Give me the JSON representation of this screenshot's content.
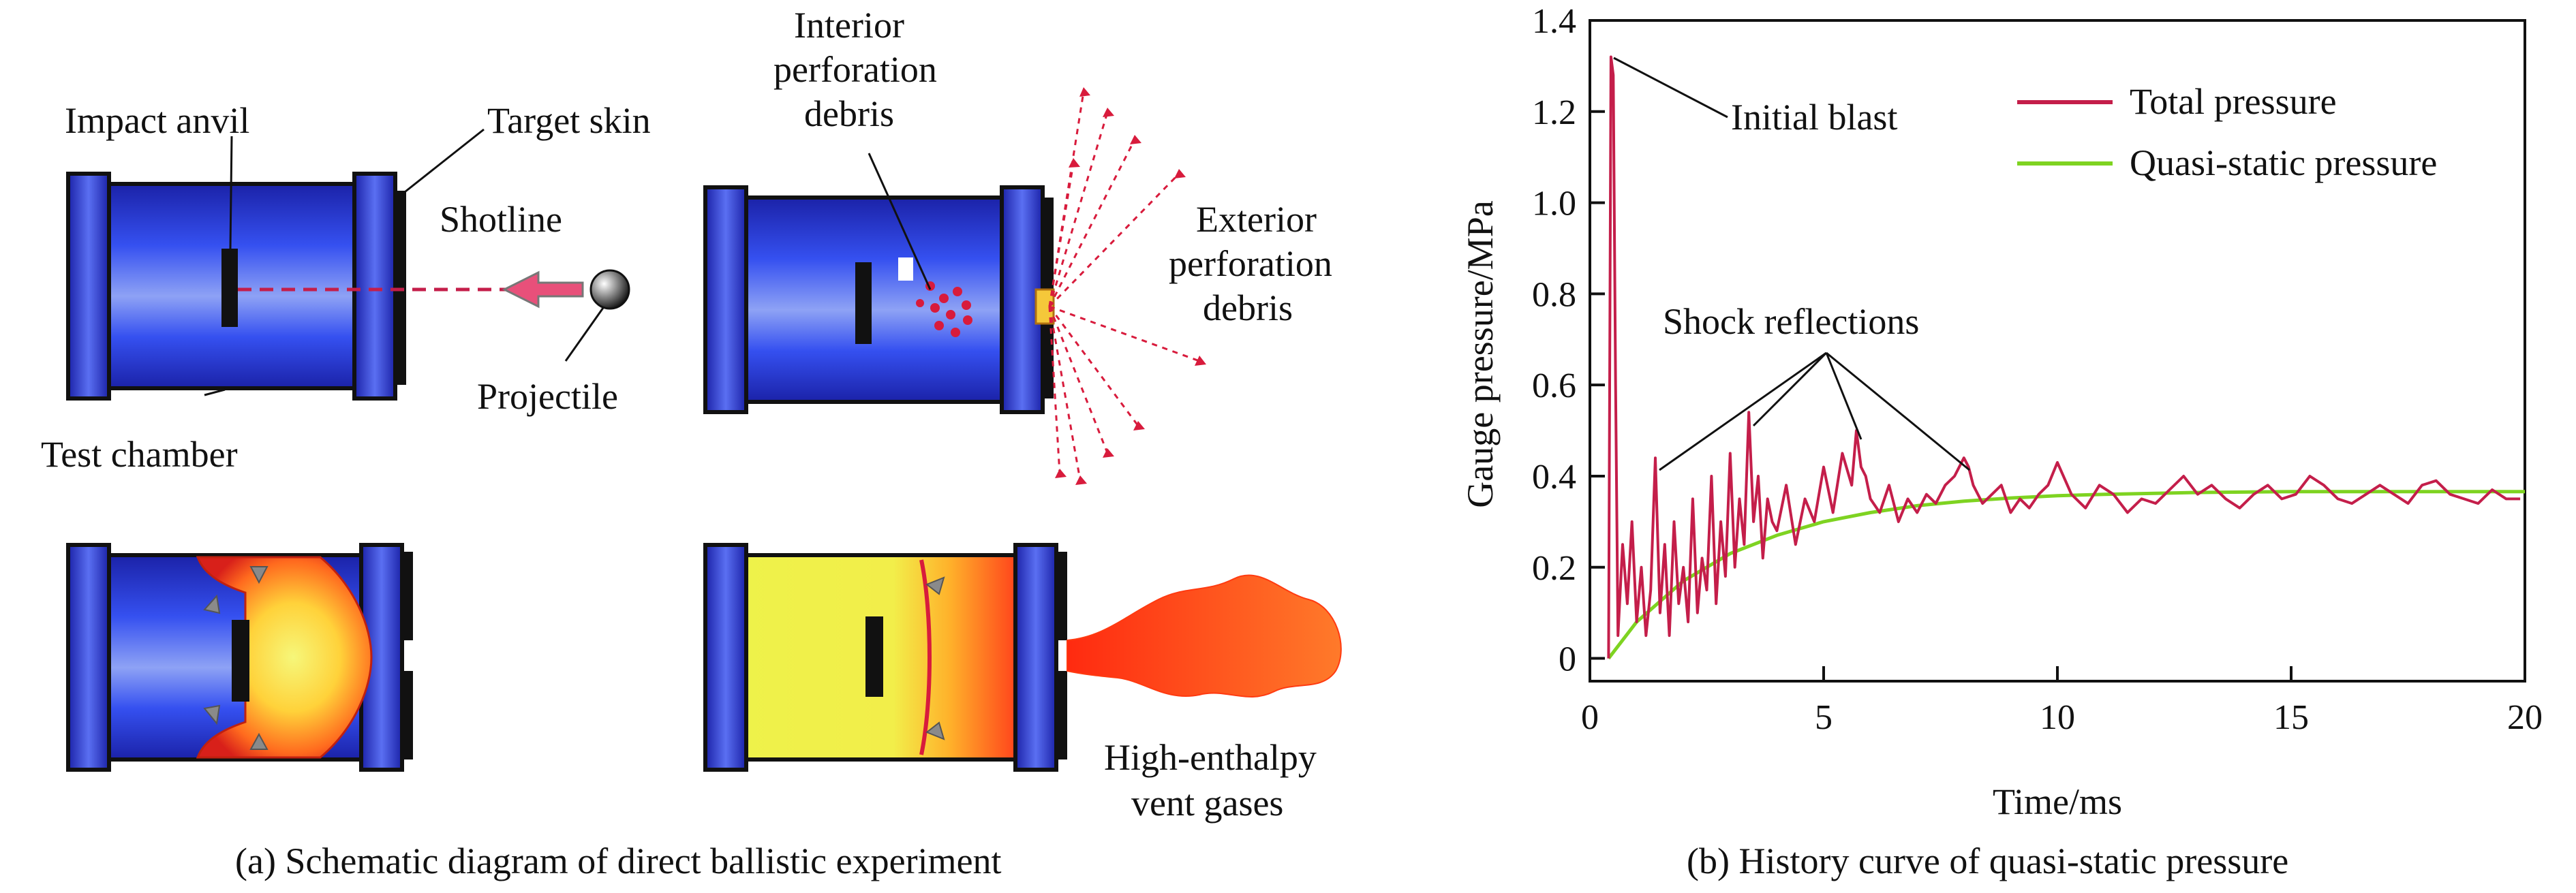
{
  "colors": {
    "chamber_blue": "#2f3fdc",
    "total_pressure": "#c41e4a",
    "quasi_static": "#7ed321",
    "debris": "#d81b3c",
    "flame": "#ff5a1f",
    "gas_fill": "#eef24a"
  },
  "panel_a": {
    "labels": {
      "impact_anvil": "Impact anvil",
      "target_skin": "Target skin",
      "shotline": "Shotline",
      "projectile": "Projectile",
      "test_chamber": "Test chamber",
      "interior_debris_1": "Interior",
      "interior_debris_2": "perforation",
      "interior_debris_3": "debris",
      "exterior_debris_1": "Exterior",
      "exterior_debris_2": "perforation",
      "exterior_debris_3": "debris",
      "vent_gases_1": "High-enthalpy",
      "vent_gases_2": "vent gases"
    },
    "caption": "(a) Schematic diagram of direct ballistic experiment"
  },
  "panel_b": {
    "caption": "(b) History curve of quasi-static pressure",
    "annotations": {
      "initial_blast": "Initial blast",
      "shock_reflections": "Shock reflections"
    }
  },
  "chart_data": {
    "type": "line",
    "xlabel": "Time/ms",
    "ylabel": "Gauge pressure/MPa",
    "xlim": [
      0,
      20
    ],
    "ylim": [
      -0.05,
      1.4
    ],
    "xticks": [
      0,
      5,
      10,
      15,
      20
    ],
    "yticks": [
      0,
      0.2,
      0.4,
      0.6,
      0.8,
      1.0,
      1.2,
      1.4
    ],
    "ytick_labels": [
      "0",
      "0.2",
      "0.4",
      "0.6",
      "0.8",
      "1.0",
      "1.2",
      "1.4"
    ],
    "legend_position": "top-right",
    "grid": false,
    "series": [
      {
        "name": "Total pressure",
        "color": "#c41e4a",
        "x": [
          0.4,
          0.45,
          0.5,
          0.55,
          0.6,
          0.7,
          0.8,
          0.9,
          1.0,
          1.1,
          1.2,
          1.3,
          1.4,
          1.5,
          1.6,
          1.7,
          1.8,
          1.9,
          2.0,
          2.1,
          2.2,
          2.3,
          2.4,
          2.5,
          2.6,
          2.7,
          2.8,
          2.9,
          3.0,
          3.1,
          3.2,
          3.3,
          3.4,
          3.5,
          3.6,
          3.7,
          3.8,
          3.9,
          4.0,
          4.2,
          4.4,
          4.6,
          4.8,
          5.0,
          5.2,
          5.4,
          5.6,
          5.7,
          5.8,
          5.9,
          6.0,
          6.2,
          6.4,
          6.6,
          6.8,
          7.0,
          7.2,
          7.4,
          7.6,
          7.8,
          8.0,
          8.1,
          8.2,
          8.4,
          8.6,
          8.8,
          9.0,
          9.2,
          9.4,
          9.6,
          9.8,
          10.0,
          10.3,
          10.6,
          10.9,
          11.2,
          11.5,
          11.8,
          12.1,
          12.4,
          12.7,
          13.0,
          13.3,
          13.6,
          13.9,
          14.2,
          14.5,
          14.8,
          15.1,
          15.4,
          15.7,
          16.0,
          16.3,
          16.6,
          16.9,
          17.2,
          17.5,
          17.8,
          18.1,
          18.4,
          18.7,
          19.0,
          19.3,
          19.6,
          19.9
        ],
        "y": [
          0.0,
          1.32,
          1.28,
          0.6,
          0.05,
          0.25,
          0.12,
          0.3,
          0.08,
          0.2,
          0.05,
          0.15,
          0.44,
          0.1,
          0.25,
          0.05,
          0.3,
          0.12,
          0.2,
          0.08,
          0.35,
          0.1,
          0.22,
          0.15,
          0.4,
          0.12,
          0.3,
          0.18,
          0.45,
          0.2,
          0.35,
          0.25,
          0.54,
          0.3,
          0.4,
          0.22,
          0.35,
          0.3,
          0.28,
          0.38,
          0.25,
          0.35,
          0.3,
          0.42,
          0.32,
          0.45,
          0.38,
          0.5,
          0.42,
          0.4,
          0.35,
          0.32,
          0.38,
          0.3,
          0.35,
          0.32,
          0.36,
          0.34,
          0.38,
          0.4,
          0.44,
          0.42,
          0.38,
          0.34,
          0.36,
          0.38,
          0.32,
          0.35,
          0.33,
          0.36,
          0.38,
          0.43,
          0.36,
          0.33,
          0.38,
          0.36,
          0.32,
          0.35,
          0.34,
          0.37,
          0.4,
          0.36,
          0.38,
          0.35,
          0.33,
          0.36,
          0.38,
          0.35,
          0.36,
          0.4,
          0.38,
          0.35,
          0.34,
          0.36,
          0.38,
          0.36,
          0.34,
          0.38,
          0.39,
          0.36,
          0.35,
          0.34,
          0.37,
          0.35,
          0.35
        ]
      },
      {
        "name": "Quasi-static pressure",
        "color": "#7ed321",
        "x": [
          0.4,
          1,
          2,
          3,
          4,
          5,
          6,
          7,
          8,
          9,
          10,
          11,
          12,
          13,
          14,
          15,
          16,
          17,
          18,
          19,
          20
        ],
        "y": [
          0.0,
          0.08,
          0.17,
          0.23,
          0.27,
          0.3,
          0.32,
          0.335,
          0.345,
          0.352,
          0.357,
          0.36,
          0.362,
          0.364,
          0.365,
          0.366,
          0.366,
          0.366,
          0.366,
          0.366,
          0.366
        ]
      }
    ]
  }
}
